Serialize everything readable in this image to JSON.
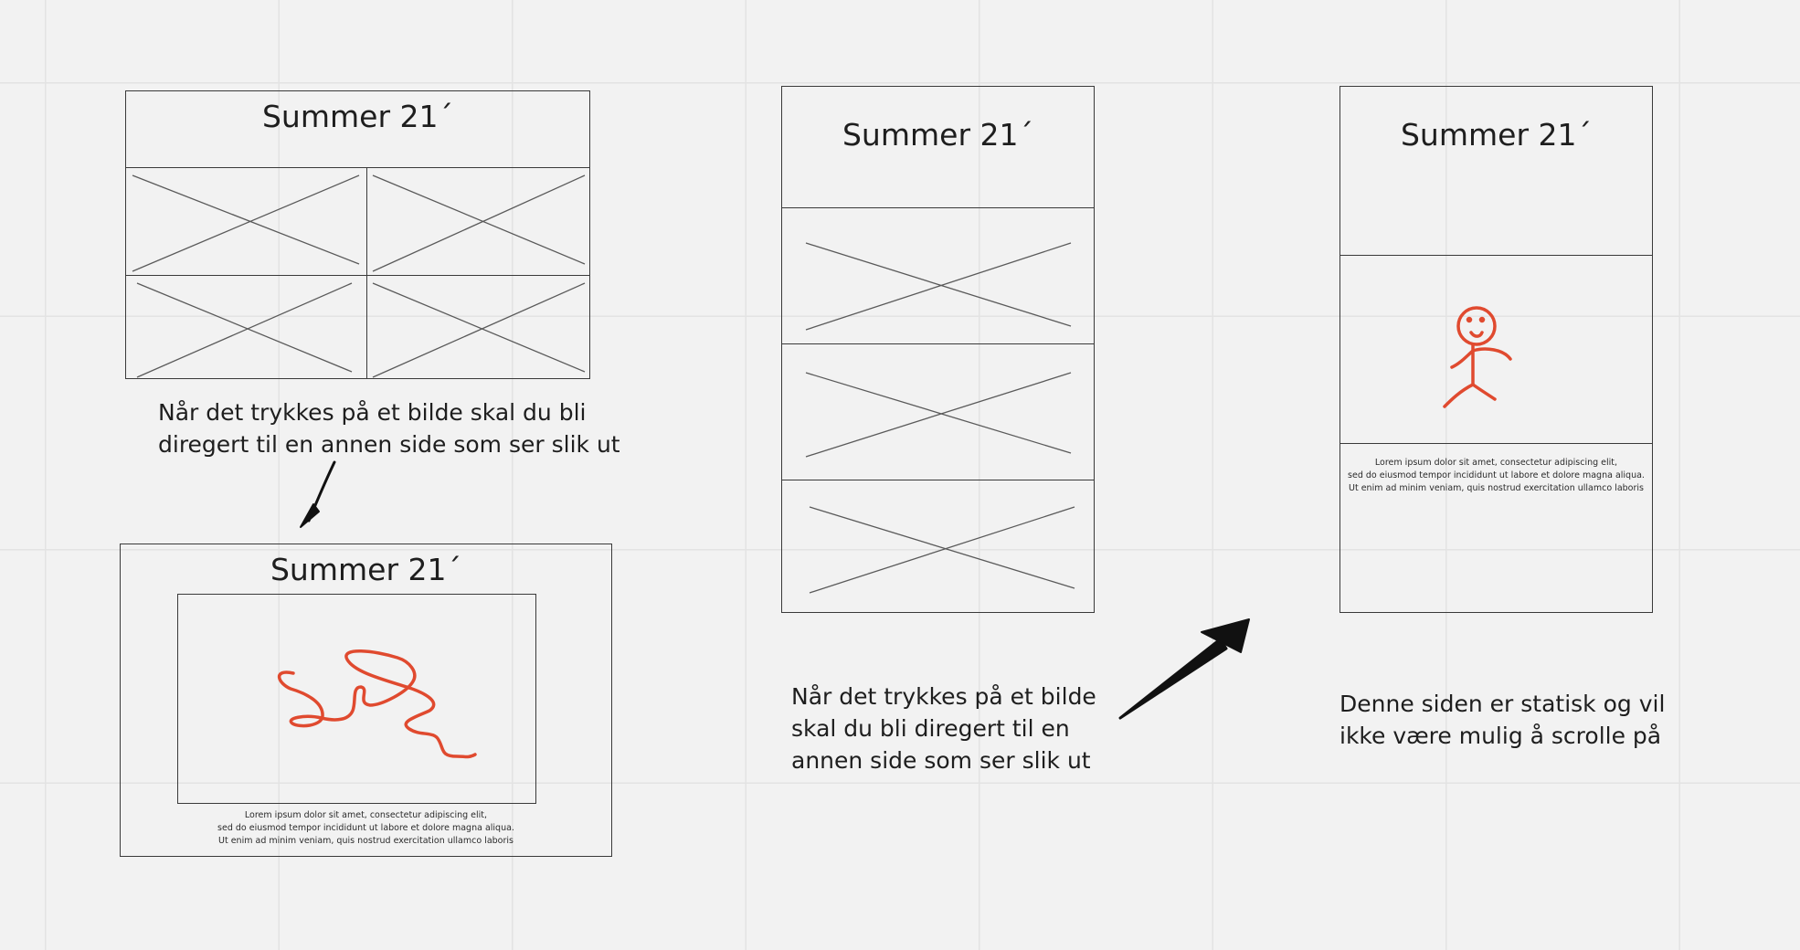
{
  "wireframes": {
    "grid_page": {
      "title": "Summer 21´",
      "tiles": [
        "image-placeholder",
        "image-placeholder",
        "image-placeholder",
        "image-placeholder"
      ]
    },
    "detail_page_left": {
      "title": "Summer 21´",
      "lorem": [
        "Lorem ipsum dolor sit amet, consectetur adipiscing elit,",
        "sed do eiusmod tempor incididunt ut labore et dolore magna aliqua.",
        "Ut enim ad minim veniam, quis nostrud exercitation ullamco laboris"
      ]
    },
    "list_page": {
      "title": "Summer 21´",
      "tiles": [
        "image-placeholder",
        "image-placeholder",
        "image-placeholder"
      ]
    },
    "detail_page_right": {
      "title": "Summer 21´",
      "lorem": [
        "Lorem ipsum dolor sit amet, consectetur adipiscing elit,",
        "sed do eiusmod tempor incididunt ut labore et dolore magna aliqua.",
        "Ut enim ad minim veniam, quis nostrud exercitation ullamco laboris"
      ]
    }
  },
  "notes": {
    "left": [
      "Når det trykkes på et bilde skal du bli",
      "diregert til en annen side som ser slik ut"
    ],
    "middle": [
      "Når det trykkes på et bilde",
      "skal du bli diregert til en",
      "annen side som ser slik ut"
    ],
    "right": [
      "Denne siden er statisk og vil",
      "ikke være mulig å scrolle på"
    ]
  },
  "colors": {
    "background": "#f2f2f2",
    "grid": "#e3e3e3",
    "frame": "#3a3a3a",
    "sketch": "#e04a2f",
    "arrow": "#111111"
  },
  "icons": {
    "placeholder": "crossed-box-icon",
    "left_arrow": "down-arrow-icon",
    "middle_arrow": "up-right-arrow-icon",
    "scribble": "scribble-sketch",
    "person": "stick-figure-sketch"
  }
}
